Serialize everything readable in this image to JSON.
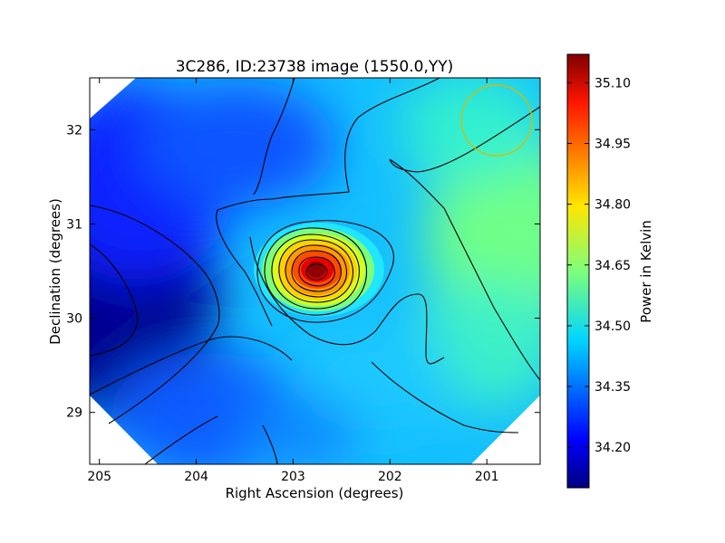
{
  "chart_data": {
    "type": "heatmap",
    "title": "3C286, ID:23738 image (1550.0,YY)",
    "xlabel": "Right Ascension (degrees)",
    "ylabel": "Declination (degrees)",
    "xlim": [
      205.1,
      200.45
    ],
    "ylim": [
      28.45,
      32.55
    ],
    "x_ticks": [
      205,
      204,
      203,
      202,
      201
    ],
    "x_tick_labels": [
      "205",
      "204",
      "203",
      "202",
      "201"
    ],
    "y_ticks": [
      29,
      30,
      31,
      32
    ],
    "y_tick_labels": [
      "29",
      "30",
      "31",
      "32"
    ],
    "colorbar": {
      "label": "Power in Kelvin",
      "range": [
        34.1,
        35.17
      ],
      "ticks": [
        34.2,
        34.35,
        34.5,
        34.65,
        34.8,
        34.95,
        35.1
      ],
      "tick_labels": [
        "34.20",
        "34.35",
        "34.50",
        "34.65",
        "34.80",
        "34.95",
        "35.10"
      ],
      "colormap": "jet"
    },
    "peak": {
      "ra": 202.72,
      "dec": 30.5,
      "value": 35.15
    },
    "minimum": {
      "ra": 205.1,
      "dec": 30.0,
      "value": 34.12
    },
    "beam_marker": {
      "ra": 200.9,
      "dec": 32.07,
      "radius_deg": 0.37,
      "color": "#d4bb00"
    },
    "grid": false,
    "contours": true
  }
}
